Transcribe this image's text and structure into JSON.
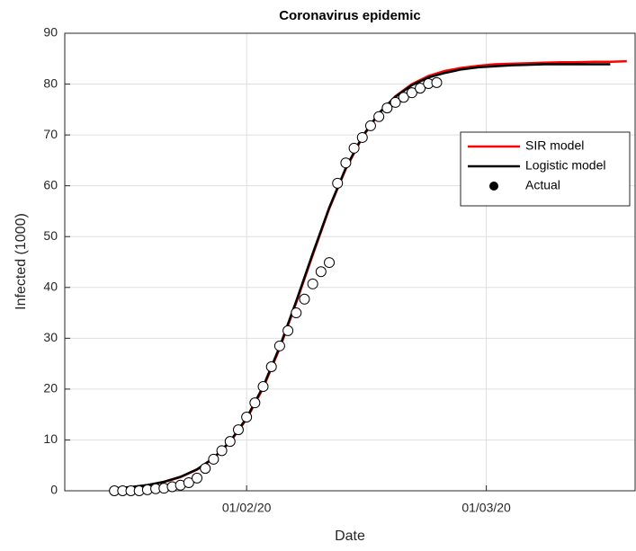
{
  "chart_data": {
    "type": "line",
    "title": "Coronavirus epidemic",
    "x_label": "Date",
    "y_label": "Infected (1000)",
    "xlim": [
      "10/01/20",
      "19/03/20"
    ],
    "xticks": [
      "01/02/20",
      "01/03/20"
    ],
    "ylim": [
      0,
      90
    ],
    "yticks": [
      0,
      10,
      20,
      30,
      40,
      50,
      60,
      70,
      80,
      90
    ],
    "grid": true,
    "legend": "upper right",
    "series": [
      {
        "name": "SIR model",
        "color": "#ff0000",
        "kind": "line",
        "x": [
          "16/01/20",
          "18/01/20",
          "20/01/20",
          "22/01/20",
          "24/01/20",
          "26/01/20",
          "28/01/20",
          "30/01/20",
          "01/02/20",
          "03/02/20",
          "05/02/20",
          "07/02/20",
          "09/02/20",
          "11/02/20",
          "13/02/20",
          "15/02/20",
          "17/02/20",
          "19/02/20",
          "21/02/20",
          "23/02/20",
          "25/02/20",
          "27/02/20",
          "29/02/20",
          "02/03/20",
          "04/03/20",
          "06/03/20",
          "08/03/20",
          "10/03/20",
          "12/03/20",
          "14/03/20",
          "16/03/20",
          "18/03/20"
        ],
        "values": [
          0.44,
          0.7,
          1.1,
          1.72,
          2.68,
          4.15,
          6.35,
          9.6,
          14.1,
          20.2,
          28.0,
          37.0,
          46.4,
          55.5,
          63.3,
          69.5,
          74.2,
          77.6,
          80.0,
          81.6,
          82.6,
          83.2,
          83.6,
          83.9,
          84.0,
          84.1,
          84.2,
          84.3,
          84.3,
          84.4,
          84.4,
          84.5
        ]
      },
      {
        "name": "Logistic model",
        "color": "#000000",
        "kind": "line",
        "x": [
          "16/01/20",
          "18/01/20",
          "20/01/20",
          "22/01/20",
          "24/01/20",
          "26/01/20",
          "28/01/20",
          "30/01/20",
          "01/02/20",
          "03/02/20",
          "05/02/20",
          "07/02/20",
          "09/02/20",
          "11/02/20",
          "13/02/20",
          "15/02/20",
          "17/02/20",
          "19/02/20",
          "21/02/20",
          "23/02/20",
          "25/02/20",
          "27/02/20",
          "29/02/20",
          "02/03/20",
          "04/03/20",
          "06/03/20",
          "08/03/20",
          "10/03/20",
          "12/03/20",
          "14/03/20",
          "16/03/20",
          "18/03/20"
        ],
        "values": [
          0.46,
          0.72,
          1.13,
          1.76,
          2.74,
          4.23,
          6.46,
          9.72,
          14.3,
          20.5,
          28.3,
          37.3,
          46.7,
          55.7,
          63.5,
          69.7,
          74.3,
          77.5,
          79.8,
          81.3,
          82.2,
          82.9,
          83.3,
          83.5,
          83.7,
          83.8,
          83.9,
          83.9,
          83.9,
          83.9,
          83.9,
          null
        ]
      },
      {
        "name": "Actual",
        "color": "#000000",
        "kind": "scatter",
        "x": [
          "16/01/20",
          "17/01/20",
          "18/01/20",
          "19/01/20",
          "20/01/20",
          "21/01/20",
          "22/01/20",
          "23/01/20",
          "24/01/20",
          "25/01/20",
          "26/01/20",
          "27/01/20",
          "28/01/20",
          "29/01/20",
          "30/01/20",
          "31/01/20",
          "01/02/20",
          "02/02/20",
          "03/02/20",
          "04/02/20",
          "05/02/20",
          "06/02/20",
          "07/02/20",
          "08/02/20",
          "09/02/20",
          "10/02/20",
          "11/02/20",
          "12/02/20",
          "13/02/20",
          "14/02/20",
          "15/02/20",
          "16/02/20",
          "17/02/20",
          "18/02/20",
          "19/02/20",
          "20/02/20",
          "21/02/20",
          "22/02/20",
          "23/02/20",
          "24/02/20"
        ],
        "values": [
          0,
          0,
          0,
          0,
          0.2,
          0.4,
          0.5,
          0.8,
          1.1,
          1.6,
          2.5,
          4.4,
          6.2,
          7.9,
          9.7,
          12.0,
          14.5,
          17.3,
          20.5,
          24.4,
          28.5,
          31.5,
          35.0,
          37.7,
          40.7,
          43.1,
          44.9,
          60.5,
          64.5,
          67.4,
          69.5,
          71.8,
          73.6,
          75.3,
          76.4,
          77.4,
          78.3,
          79.2,
          80.1,
          80.3
        ]
      }
    ]
  }
}
